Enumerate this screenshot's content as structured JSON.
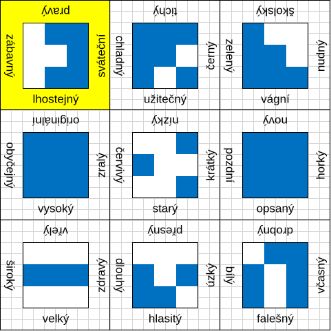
{
  "tiles": [
    {
      "highlighted": true,
      "words": {
        "top": "pravý",
        "bottom": "lhostejný",
        "left": "zábavný",
        "right": "sváteční"
      },
      "pattern": [
        [
          0,
          1,
          1
        ],
        [
          0,
          0,
          1
        ],
        [
          0,
          1,
          1
        ]
      ]
    },
    {
      "highlighted": false,
      "words": {
        "top": "tichý",
        "bottom": "užitečný",
        "left": "chladný",
        "right": "černý"
      },
      "pattern": [
        [
          1,
          1,
          1
        ],
        [
          1,
          1,
          0
        ],
        [
          1,
          0,
          1
        ]
      ]
    },
    {
      "highlighted": false,
      "words": {
        "top": "školský",
        "bottom": "vágní",
        "left": "zelený",
        "right": "nudný"
      },
      "pattern": [
        [
          1,
          0,
          0
        ],
        [
          1,
          1,
          0
        ],
        [
          1,
          1,
          1
        ]
      ]
    },
    {
      "highlighted": false,
      "words": {
        "top": "originální",
        "bottom": "vysoký",
        "left": "obyčejný",
        "right": "zralý"
      },
      "pattern": [
        [
          1,
          1,
          1
        ],
        [
          1,
          1,
          1
        ],
        [
          1,
          1,
          1
        ]
      ]
    },
    {
      "highlighted": false,
      "words": {
        "top": "nízký",
        "bottom": "starý",
        "left": "červivý",
        "right": "krátký"
      },
      "pattern": [
        [
          0,
          0,
          1
        ],
        [
          1,
          0,
          0
        ],
        [
          0,
          0,
          1
        ]
      ]
    },
    {
      "highlighted": false,
      "words": {
        "top": "nový",
        "bottom": "opsaný",
        "left": "pozdní",
        "right": "horký"
      },
      "pattern": [
        [
          1,
          1,
          1
        ],
        [
          1,
          1,
          1
        ],
        [
          1,
          1,
          1
        ]
      ]
    },
    {
      "highlighted": false,
      "words": {
        "top": "vřelý",
        "bottom": "velký",
        "left": "široký",
        "right": "zdravý"
      },
      "pattern": [
        [
          0,
          0,
          0
        ],
        [
          1,
          1,
          1
        ],
        [
          0,
          0,
          0
        ]
      ]
    },
    {
      "highlighted": false,
      "words": {
        "top": "přesný",
        "bottom": "hlasitý",
        "left": "dlouhý",
        "right": "úzký"
      },
      "pattern": [
        [
          0,
          0,
          0
        ],
        [
          1,
          0,
          1
        ],
        [
          1,
          1,
          0
        ]
      ]
    },
    {
      "highlighted": false,
      "words": {
        "top": "drobný",
        "bottom": "falešný",
        "left": "bílý",
        "right": "včasný"
      },
      "pattern": [
        [
          0,
          1,
          1
        ],
        [
          1,
          0,
          1
        ],
        [
          1,
          0,
          1
        ]
      ]
    }
  ],
  "colors": {
    "accent": "#0070c0",
    "highlight": "#ffff00",
    "grid": "#d6d6d6"
  }
}
